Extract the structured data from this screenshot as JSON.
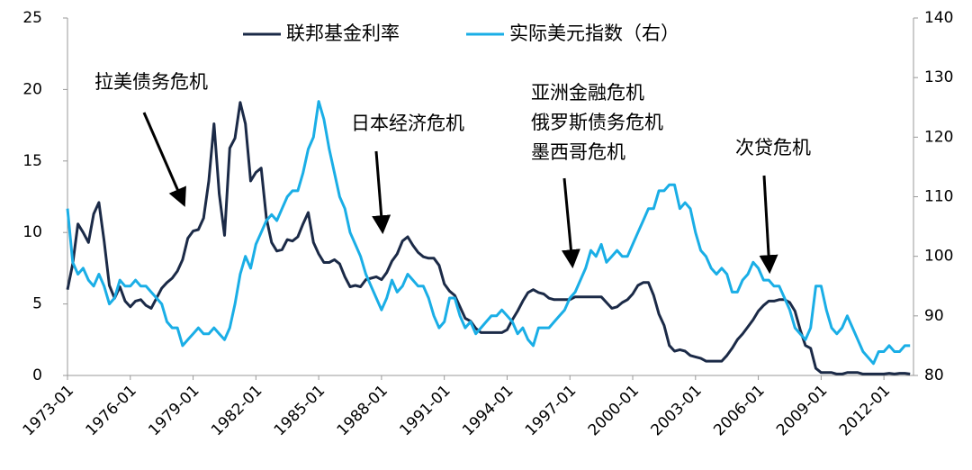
{
  "chart_data": {
    "type": "line",
    "categories": [
      "1973-01",
      null,
      null,
      null,
      null,
      null,
      null,
      null,
      null,
      null,
      null,
      null,
      "1976-01",
      null,
      null,
      null,
      null,
      null,
      null,
      null,
      null,
      null,
      null,
      null,
      "1979-01",
      null,
      null,
      null,
      null,
      null,
      null,
      null,
      null,
      null,
      null,
      null,
      "1982-01",
      null,
      null,
      null,
      null,
      null,
      null,
      null,
      null,
      null,
      null,
      null,
      "1985-01",
      null,
      null,
      null,
      null,
      null,
      null,
      null,
      null,
      null,
      null,
      null,
      "1988-01",
      null,
      null,
      null,
      null,
      null,
      null,
      null,
      null,
      null,
      null,
      null,
      "1991-01",
      null,
      null,
      null,
      null,
      null,
      null,
      null,
      null,
      null,
      null,
      null,
      "1994-01",
      null,
      null,
      null,
      null,
      null,
      null,
      null,
      null,
      null,
      null,
      null,
      "1997-01",
      null,
      null,
      null,
      null,
      null,
      null,
      null,
      null,
      null,
      null,
      null,
      "2000-01",
      null,
      null,
      null,
      null,
      null,
      null,
      null,
      null,
      null,
      null,
      null,
      "2003-01",
      null,
      null,
      null,
      null,
      null,
      null,
      null,
      null,
      null,
      null,
      null,
      "2006-01",
      null,
      null,
      null,
      null,
      null,
      null,
      null,
      null,
      null,
      null,
      null,
      "2009-01",
      null,
      null,
      null,
      null,
      null,
      null,
      null,
      null,
      null,
      null,
      null,
      "2012-01",
      null,
      null,
      null,
      null,
      null
    ],
    "series": [
      {
        "name": "联邦基金利率",
        "color": "#1b2a47",
        "values": [
          6.0,
          7.8,
          10.6,
          10.0,
          9.3,
          11.3,
          12.1,
          9.4,
          6.3,
          5.4,
          6.2,
          5.2,
          4.8,
          5.2,
          5.3,
          4.9,
          4.7,
          5.4,
          6.1,
          6.5,
          6.8,
          7.3,
          8.1,
          9.6,
          10.1,
          10.2,
          11.0,
          13.6,
          17.6,
          12.7,
          9.8,
          15.9,
          16.6,
          19.1,
          17.6,
          13.6,
          14.2,
          14.5,
          11.0,
          9.3,
          8.7,
          8.8,
          9.5,
          9.4,
          9.7,
          10.6,
          11.4,
          9.3,
          8.5,
          7.9,
          7.9,
          8.1,
          7.8,
          6.9,
          6.2,
          6.3,
          6.2,
          6.7,
          6.8,
          6.9,
          6.7,
          7.2,
          8.0,
          8.5,
          9.4,
          9.7,
          9.1,
          8.6,
          8.3,
          8.2,
          8.2,
          7.7,
          6.4,
          5.9,
          5.6,
          4.8,
          4.0,
          3.8,
          3.3,
          3.0,
          3.0,
          3.0,
          3.0,
          3.0,
          3.2,
          3.9,
          4.5,
          5.2,
          5.8,
          6.0,
          5.8,
          5.7,
          5.4,
          5.3,
          5.3,
          5.3,
          5.3,
          5.5,
          5.5,
          5.5,
          5.5,
          5.5,
          5.5,
          5.1,
          4.7,
          4.8,
          5.1,
          5.3,
          5.7,
          6.3,
          6.5,
          6.5,
          5.6,
          4.3,
          3.5,
          2.1,
          1.7,
          1.8,
          1.7,
          1.4,
          1.3,
          1.2,
          1.0,
          1.0,
          1.0,
          1.0,
          1.4,
          1.9,
          2.5,
          2.9,
          3.4,
          3.9,
          4.5,
          4.9,
          5.2,
          5.2,
          5.3,
          5.3,
          5.1,
          4.5,
          3.2,
          2.1,
          1.9,
          0.5,
          0.2,
          0.2,
          0.2,
          0.1,
          0.1,
          0.2,
          0.2,
          0.2,
          0.1,
          0.1,
          0.1,
          0.1,
          0.1,
          0.15,
          0.1,
          0.15,
          0.15,
          0.1
        ]
      },
      {
        "name": "实际美元指数（右）",
        "color": "#1aaee6",
        "axis": "y2",
        "values": [
          108,
          99,
          97,
          98,
          96,
          95,
          97,
          95,
          92,
          93,
          96,
          95,
          95,
          96,
          95,
          95,
          94,
          93,
          92,
          89,
          88,
          88,
          85,
          86,
          87,
          88,
          87,
          87,
          88,
          87,
          86,
          88,
          92,
          97,
          100,
          98,
          102,
          104,
          106,
          107,
          106,
          108,
          110,
          111,
          111,
          114,
          118,
          120,
          126,
          123,
          118,
          114,
          110,
          108,
          104,
          102,
          100,
          97,
          95,
          93,
          91,
          93,
          96,
          94,
          95,
          97,
          96,
          95,
          95,
          93,
          90,
          88,
          89,
          93,
          93,
          90,
          88,
          89,
          87,
          88,
          89,
          90,
          90,
          91,
          90,
          89,
          87,
          88,
          86,
          85,
          88,
          88,
          88,
          89,
          90,
          91,
          93,
          94,
          96,
          98,
          101,
          100,
          102,
          99,
          100,
          101,
          100,
          100,
          102,
          104,
          106,
          108,
          108,
          111,
          111,
          112,
          112,
          108,
          109,
          108,
          104,
          101,
          100,
          98,
          97,
          98,
          97,
          94,
          94,
          96,
          97,
          99,
          98,
          96,
          96,
          95,
          95,
          93,
          91,
          88,
          87,
          86,
          88,
          95,
          95,
          91,
          88,
          87,
          88,
          90,
          88,
          86,
          84,
          83,
          82,
          84,
          84,
          85,
          84,
          84,
          85,
          85
        ]
      }
    ],
    "ylim": [
      0,
      25
    ],
    "yticks": [
      0,
      5,
      10,
      15,
      20,
      25
    ],
    "y2lim": [
      80,
      140
    ],
    "y2ticks": [
      80,
      90,
      100,
      110,
      120,
      130,
      140
    ],
    "legend": "top",
    "annotations": [
      [
        "拉美债务危机"
      ],
      [
        "日本经济危机"
      ],
      [
        "亚洲金融危机",
        "俄罗斯债务危机",
        "墨西哥危机"
      ],
      [
        "次贷危机"
      ]
    ]
  }
}
